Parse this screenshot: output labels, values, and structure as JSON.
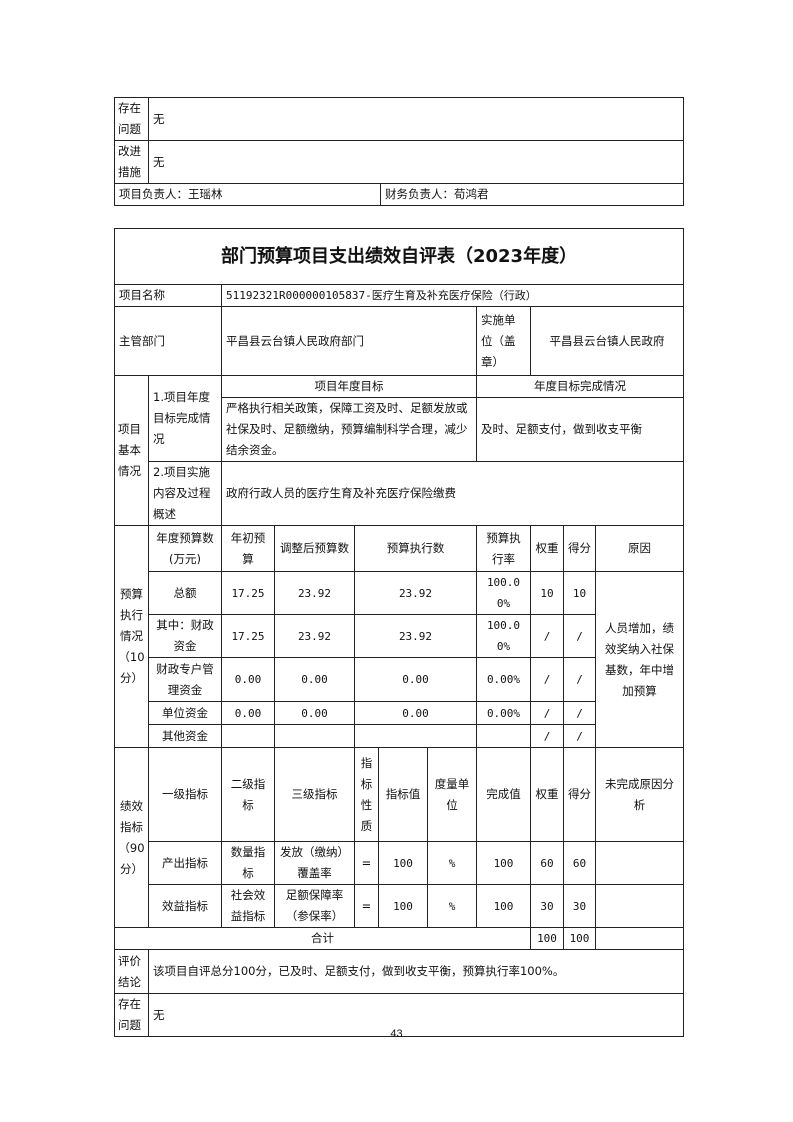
{
  "prev_table": {
    "issues_label": "存在问题",
    "issues_value": "无",
    "improve_label": "改进措施",
    "improve_value": "无",
    "project_lead": "项目负责人：王瑶林",
    "finance_lead": "财务负责人：荀鸿君"
  },
  "form": {
    "title": "部门预算项目支出绩效自评表（2023年度）",
    "project_name_label": "项目名称",
    "project_name": "51192321R000000105837-医疗生育及补充医疗保险（行政）",
    "dept_label": "主管部门",
    "dept": "平昌县云台镇人民政府部门",
    "impl_unit_label": "实施单位（盖章）",
    "impl_unit": "平昌县云台镇人民政府",
    "basic": {
      "label": "项目基本情况",
      "goal_row_label": "1.项目年度目标完成情况",
      "goal_header": "项目年度目标",
      "completion_header": "年度目标完成情况",
      "goal_text": "严格执行相关政策，保障工资及时、足额发放或社保及时、足额缴纳，预算编制科学合理，减少结余资金。",
      "completion_text": "及时、足额支付，做到收支平衡",
      "content_label": "2.项目实施内容及过程概述",
      "content_text": "政府行政人员的医疗生育及补充医疗保险缴费"
    },
    "budget": {
      "label": "预算执行情况（10分）",
      "headers": [
        "年度预算数(万元)",
        "年初预算",
        "调整后预算数",
        "预算执行数",
        "预算执行率",
        "权重",
        "得分",
        "原因"
      ],
      "rows": [
        {
          "name": "总额",
          "initial": "17.25",
          "adjusted": "23.92",
          "executed": "23.92",
          "rate": "100.00%",
          "weight": "10",
          "score": "10"
        },
        {
          "name": "其中：财政资金",
          "initial": "17.25",
          "adjusted": "23.92",
          "executed": "23.92",
          "rate": "100.00%",
          "weight": "/",
          "score": "/"
        },
        {
          "name": "财政专户管理资金",
          "initial": "0.00",
          "adjusted": "0.00",
          "executed": "0.00",
          "rate": "0.00%",
          "weight": "/",
          "score": "/"
        },
        {
          "name": "单位资金",
          "initial": "0.00",
          "adjusted": "0.00",
          "executed": "0.00",
          "rate": "0.00%",
          "weight": "/",
          "score": "/"
        },
        {
          "name": "其他资金",
          "initial": "",
          "adjusted": "",
          "executed": "",
          "rate": "",
          "weight": "/",
          "score": "/"
        }
      ],
      "reason": "人员增加，绩效奖纳入社保基数，年中增加预算"
    },
    "performance": {
      "label": "绩效指标（90分）",
      "headers": [
        "一级指标",
        "二级指标",
        "三级指标",
        "指标性质",
        "指标值",
        "度量单位",
        "完成值",
        "权重",
        "得分",
        "未完成原因分析"
      ],
      "rows": [
        {
          "l1": "产出指标",
          "l2": "数量指标",
          "l3": "发放（缴纳）覆盖率",
          "nature": "=",
          "value": "100",
          "unit": "%",
          "done": "100",
          "weight": "60",
          "score": "60",
          "reason": ""
        },
        {
          "l1": "效益指标",
          "l2": "社会效益指标",
          "l3": "足额保障率（参保率）",
          "nature": "=",
          "value": "100",
          "unit": "%",
          "done": "100",
          "weight": "30",
          "score": "30",
          "reason": ""
        }
      ],
      "total_label": "合计",
      "total_weight": "100",
      "total_score": "100"
    },
    "conclusion_label": "评价结论",
    "conclusion": "该项目自评总分100分，已及时、足额支付，做到收支平衡，预算执行率100%。",
    "issues_label": "存在问题",
    "issues": "无"
  },
  "page_number": "43"
}
